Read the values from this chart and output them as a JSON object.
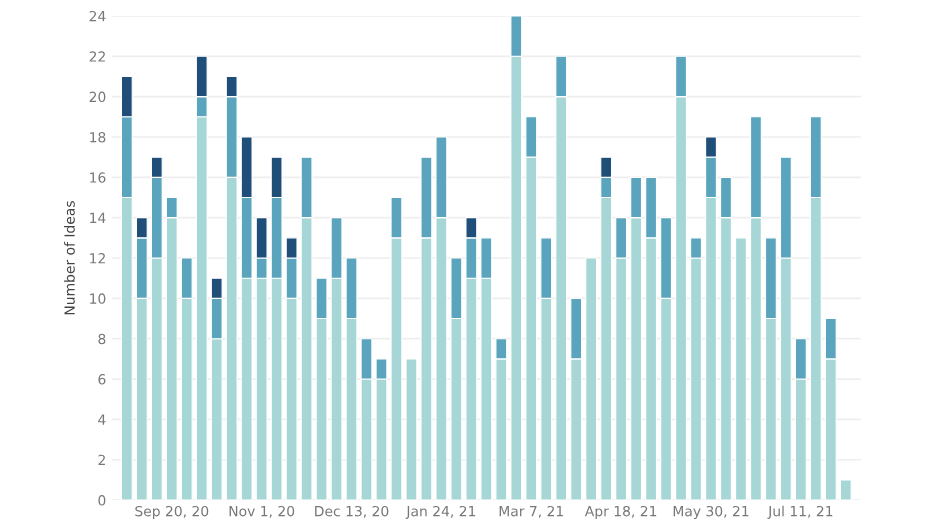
{
  "chart_data": {
    "type": "bar",
    "stacked": true,
    "ylabel": "Number of Ideas",
    "categories": [
      null,
      null,
      null,
      "Sep 20, 20",
      null,
      null,
      null,
      null,
      null,
      "Nov 1, 20",
      null,
      null,
      null,
      null,
      null,
      "Dec 13, 20",
      null,
      null,
      null,
      null,
      null,
      "Jan 24, 21",
      null,
      null,
      null,
      null,
      null,
      "Mar 7, 21",
      null,
      null,
      null,
      null,
      null,
      "Apr 18, 21",
      null,
      null,
      null,
      null,
      null,
      "May 30, 21",
      null,
      null,
      null,
      null,
      null,
      "Jul 11, 21",
      null,
      null,
      null
    ],
    "series": [
      {
        "color": "#a6d7d6",
        "values": [
          15,
          10,
          12,
          14,
          10,
          19,
          8,
          16,
          11,
          11,
          11,
          10,
          14,
          9,
          11,
          9,
          6,
          6,
          13,
          7,
          13,
          14,
          9,
          11,
          11,
          7,
          22,
          17,
          10,
          20,
          7,
          12,
          15,
          12,
          14,
          13,
          10,
          20,
          12,
          15,
          14,
          13,
          14,
          9,
          12,
          6,
          15,
          7,
          1
        ]
      },
      {
        "color": "#5ba4bd",
        "values": [
          4,
          3,
          4,
          1,
          2,
          1,
          2,
          4,
          4,
          1,
          4,
          2,
          3,
          2,
          3,
          3,
          2,
          1,
          2,
          0,
          4,
          4,
          3,
          2,
          2,
          1,
          2,
          2,
          3,
          2,
          3,
          0,
          1,
          2,
          2,
          3,
          4,
          2,
          1,
          2,
          2,
          0,
          5,
          4,
          5,
          2,
          4,
          2,
          0
        ]
      },
      {
        "color": "#1f4e79",
        "values": [
          2,
          1,
          1,
          0,
          0,
          2,
          1,
          1,
          3,
          2,
          2,
          1,
          0,
          0,
          0,
          0,
          0,
          0,
          0,
          0,
          0,
          0,
          0,
          1,
          0,
          0,
          0,
          0,
          0,
          0,
          0,
          0,
          1,
          0,
          0,
          0,
          0,
          0,
          0,
          1,
          0,
          0,
          0,
          0,
          0,
          0,
          0,
          0,
          0
        ]
      }
    ],
    "ylim": [
      0,
      24
    ],
    "yticks": [
      0,
      2,
      4,
      6,
      8,
      10,
      12,
      14,
      16,
      18,
      20,
      22,
      24
    ],
    "grid": "y",
    "legend": false
  }
}
